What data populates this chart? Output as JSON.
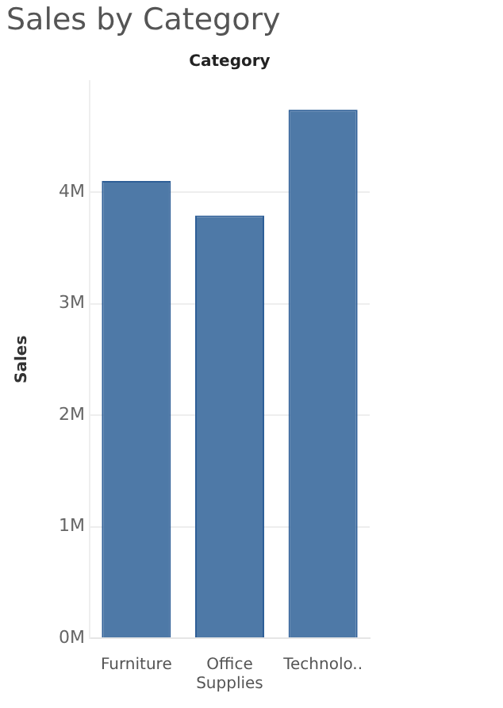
{
  "chart_data": {
    "type": "bar",
    "title": "Sales by Category",
    "xlabel": "Category",
    "ylabel": "Sales",
    "categories": [
      "Furniture",
      "Office Supplies",
      "Technolo.."
    ],
    "values": [
      4.1,
      3.79,
      4.74
    ],
    "color": "#4e79a7",
    "ylim": [
      0,
      5
    ],
    "yticks": [
      {
        "value": 0,
        "label": "0M"
      },
      {
        "value": 1,
        "label": "1M"
      },
      {
        "value": 2,
        "label": "2M"
      },
      {
        "value": 3,
        "label": "3M"
      },
      {
        "value": 4,
        "label": "4M"
      }
    ],
    "grid": "y",
    "legend": false
  }
}
